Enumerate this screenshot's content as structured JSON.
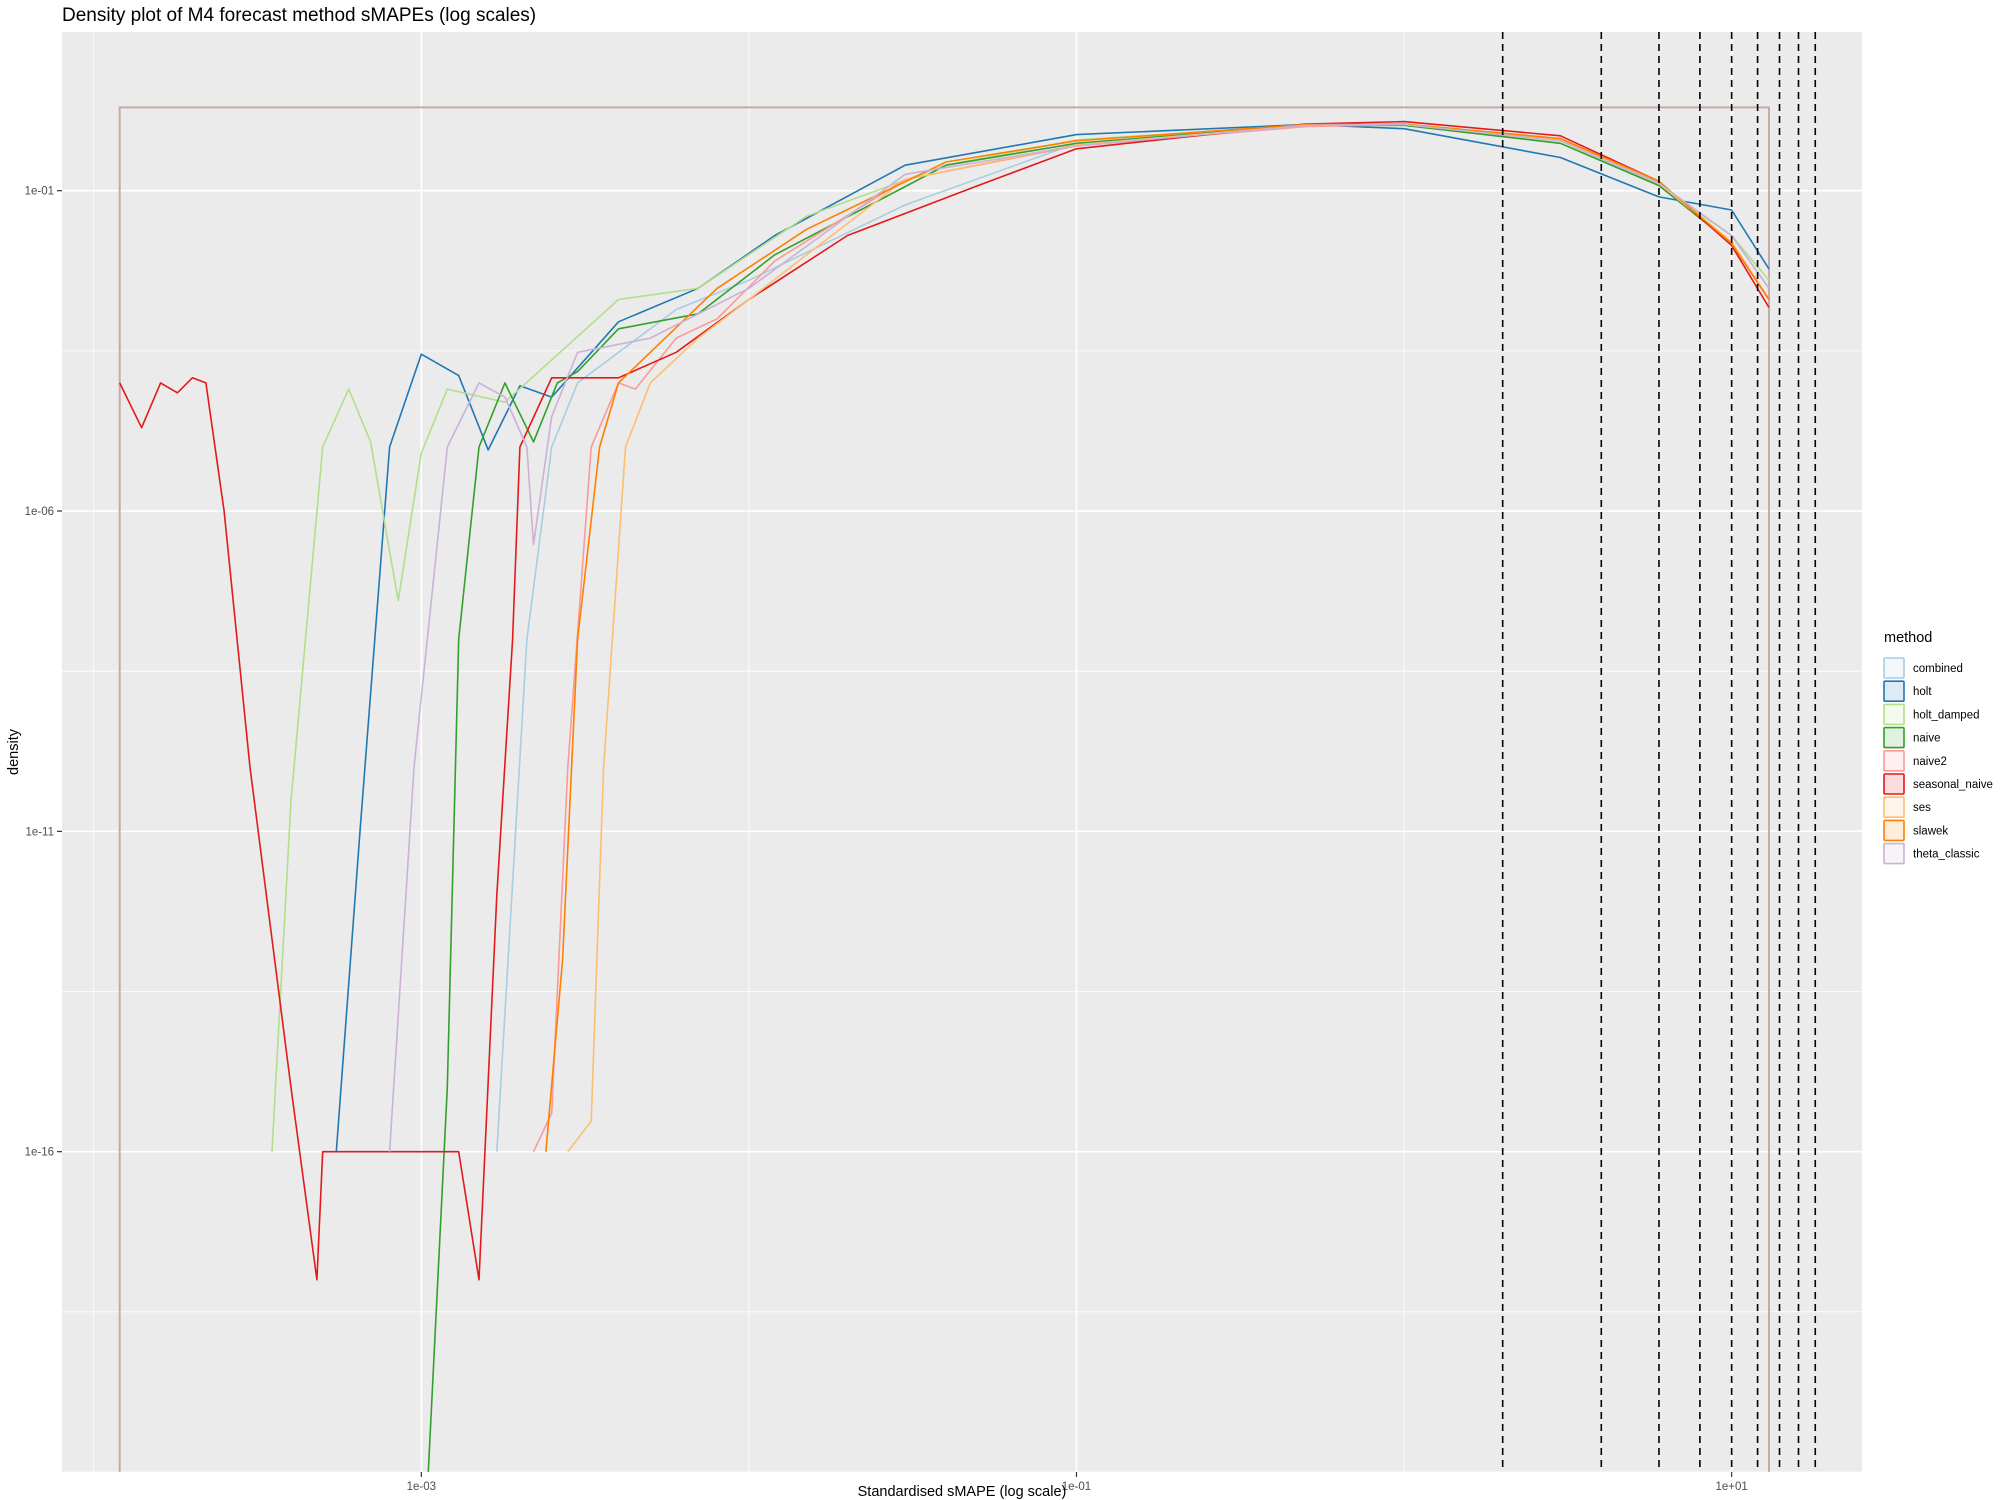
{
  "chart_data": {
    "type": "line",
    "title": "Density plot of M4 forecast method sMAPEs (log scales)",
    "xlabel": "Standardised sMAPE (log scale)",
    "ylabel": "density",
    "x_scale": "log10",
    "y_scale": "log10",
    "xlim": [
      8e-05,
      25
    ],
    "ylim": [
      1e-21,
      30
    ],
    "x_ticks": [
      0.001,
      0.1,
      10
    ],
    "x_tick_labels": [
      "1e-03",
      "1e-01",
      "1e+01"
    ],
    "y_ticks": [
      1e-16,
      1e-11,
      1e-06,
      0.1
    ],
    "y_tick_labels": [
      "1e-16",
      "1e-11",
      "1e-06",
      "1e-01"
    ],
    "grid": true,
    "legend": {
      "title": "method",
      "position": "right",
      "entries": [
        "combined",
        "holt",
        "holt_damped",
        "naive",
        "naive2",
        "seasonal_naive",
        "ses",
        "slawek",
        "theta_classic"
      ]
    },
    "vlines": [
      2,
      4,
      6,
      8,
      10,
      12,
      14,
      16,
      18
    ],
    "vline_style": "dashed",
    "frame": {
      "x": [
        0.00012,
        13
      ],
      "y_top": 2,
      "color": "#c9a9a4"
    },
    "series": [
      {
        "name": "combined",
        "color": "#a6cee3",
        "points": [
          [
            0.0017,
            1e-16
          ],
          [
            0.0021,
            1e-08
          ],
          [
            0.0025,
            1e-05
          ],
          [
            0.003,
            0.0001
          ],
          [
            0.006,
            0.0014
          ],
          [
            0.01,
            0.004
          ],
          [
            0.03,
            0.06
          ],
          [
            0.1,
            0.55
          ],
          [
            0.5,
            1.1
          ],
          [
            1,
            1.05
          ],
          [
            3,
            0.6
          ],
          [
            6,
            0.12
          ],
          [
            10,
            0.02
          ],
          [
            13,
            0.003
          ]
        ]
      },
      {
        "name": "holt",
        "color": "#1f78b4",
        "points": [
          [
            0.00055,
            1e-16
          ],
          [
            0.00065,
            1e-11
          ],
          [
            0.0008,
            1e-05
          ],
          [
            0.001,
            0.00028
          ],
          [
            0.0013,
            0.00013
          ],
          [
            0.0016,
            9e-06
          ],
          [
            0.002,
            9e-05
          ],
          [
            0.0025,
            6e-05
          ],
          [
            0.004,
            0.0009
          ],
          [
            0.007,
            0.003
          ],
          [
            0.012,
            0.02
          ],
          [
            0.03,
            0.25
          ],
          [
            0.1,
            0.75
          ],
          [
            0.5,
            1.08
          ],
          [
            1,
            0.93
          ],
          [
            3,
            0.33
          ],
          [
            6,
            0.08
          ],
          [
            10,
            0.05
          ],
          [
            13,
            0.006
          ]
        ]
      },
      {
        "name": "holt_damped",
        "color": "#b2df8a",
        "points": [
          [
            0.00035,
            1e-16
          ],
          [
            0.0004,
            3e-11
          ],
          [
            0.0005,
            1e-05
          ],
          [
            0.0006,
            8e-05
          ],
          [
            0.0007,
            1.2e-05
          ],
          [
            0.00085,
            4e-08
          ],
          [
            0.001,
            8e-06
          ],
          [
            0.0012,
            8e-05
          ],
          [
            0.0018,
            5e-05
          ],
          [
            0.004,
            0.002
          ],
          [
            0.007,
            0.003
          ],
          [
            0.015,
            0.04
          ],
          [
            0.04,
            0.25
          ],
          [
            0.1,
            0.62
          ],
          [
            0.5,
            1.05
          ],
          [
            1,
            1.05
          ],
          [
            3,
            0.55
          ],
          [
            6,
            0.12
          ],
          [
            10,
            0.02
          ],
          [
            13,
            0.004
          ]
        ]
      },
      {
        "name": "naive",
        "color": "#33a02c",
        "points": [
          [
            0.00105,
            1e-21
          ],
          [
            0.0012,
            1e-15
          ],
          [
            0.0013,
            1e-08
          ],
          [
            0.0015,
            1e-05
          ],
          [
            0.0018,
            0.0001
          ],
          [
            0.0022,
            1.2e-05
          ],
          [
            0.0026,
            0.0001
          ],
          [
            0.003,
            0.00015
          ],
          [
            0.004,
            0.0007
          ],
          [
            0.007,
            0.0012
          ],
          [
            0.012,
            0.01
          ],
          [
            0.04,
            0.25
          ],
          [
            0.1,
            0.55
          ],
          [
            0.5,
            1.05
          ],
          [
            1,
            1.05
          ],
          [
            3,
            0.55
          ],
          [
            6,
            0.12
          ],
          [
            10,
            0.015
          ],
          [
            13,
            0.002
          ]
        ]
      },
      {
        "name": "naive2",
        "color": "#fb9a99",
        "points": [
          [
            0.0022,
            1e-16
          ],
          [
            0.0025,
            4e-16
          ],
          [
            0.0028,
            1e-10
          ],
          [
            0.0033,
            1e-05
          ],
          [
            0.004,
            0.0001
          ],
          [
            0.0045,
            8e-05
          ],
          [
            0.006,
            0.0005
          ],
          [
            0.008,
            0.001
          ],
          [
            0.012,
            0.008
          ],
          [
            0.03,
            0.15
          ],
          [
            0.1,
            0.5
          ],
          [
            0.5,
            1.0
          ],
          [
            1,
            1.08
          ],
          [
            3,
            0.62
          ],
          [
            6,
            0.13
          ],
          [
            10,
            0.015
          ],
          [
            13,
            0.002
          ]
        ]
      },
      {
        "name": "seasonal_naive",
        "color": "#e31a1c",
        "points": [
          [
            0.00012,
            0.0001
          ],
          [
            0.00014,
            2e-05
          ],
          [
            0.00016,
            0.0001
          ],
          [
            0.00018,
            7e-05
          ],
          [
            0.0002,
            0.00012
          ],
          [
            0.00022,
            0.0001
          ],
          [
            0.00025,
            1e-06
          ],
          [
            0.0003,
            1e-10
          ],
          [
            0.0004,
            1e-15
          ],
          [
            0.00048,
            1e-18
          ],
          [
            0.0005,
            1e-16
          ],
          [
            0.0007,
            1e-16
          ],
          [
            0.0009,
            1e-16
          ],
          [
            0.0011,
            1e-16
          ],
          [
            0.0013,
            1e-16
          ],
          [
            0.0015,
            1e-18
          ],
          [
            0.0017,
            1e-12
          ],
          [
            0.0019,
            1e-08
          ],
          [
            0.002,
            1e-05
          ],
          [
            0.0025,
            0.00012
          ],
          [
            0.004,
            0.00012
          ],
          [
            0.006,
            0.0003
          ],
          [
            0.01,
            0.002
          ],
          [
            0.02,
            0.02
          ],
          [
            0.05,
            0.12
          ],
          [
            0.1,
            0.45
          ],
          [
            0.5,
            1.1
          ],
          [
            1,
            1.2
          ],
          [
            3,
            0.72
          ],
          [
            6,
            0.14
          ],
          [
            10,
            0.014
          ],
          [
            13,
            0.0015
          ]
        ]
      },
      {
        "name": "ses",
        "color": "#fdbf6f",
        "points": [
          [
            0.0028,
            1e-16
          ],
          [
            0.0033,
            3e-16
          ],
          [
            0.0036,
            1e-10
          ],
          [
            0.0042,
            1e-05
          ],
          [
            0.005,
            0.0001
          ],
          [
            0.007,
            0.0005
          ],
          [
            0.01,
            0.002
          ],
          [
            0.015,
            0.01
          ],
          [
            0.03,
            0.15
          ],
          [
            0.1,
            0.52
          ],
          [
            0.5,
            1.05
          ],
          [
            1,
            1.1
          ],
          [
            3,
            0.62
          ],
          [
            6,
            0.13
          ],
          [
            10,
            0.016
          ],
          [
            13,
            0.002
          ]
        ]
      },
      {
        "name": "slawek",
        "color": "#ff7f00",
        "points": [
          [
            0.0024,
            1e-16
          ],
          [
            0.0027,
            1e-13
          ],
          [
            0.003,
            1e-08
          ],
          [
            0.0035,
            1e-05
          ],
          [
            0.004,
            0.0001
          ],
          [
            0.005,
            0.0003
          ],
          [
            0.008,
            0.003
          ],
          [
            0.015,
            0.025
          ],
          [
            0.04,
            0.28
          ],
          [
            0.1,
            0.6
          ],
          [
            0.5,
            1.08
          ],
          [
            1,
            1.1
          ],
          [
            3,
            0.65
          ],
          [
            6,
            0.14
          ],
          [
            10,
            0.015
          ],
          [
            13,
            0.002
          ]
        ]
      },
      {
        "name": "theta_classic",
        "color": "#cab2d6",
        "points": [
          [
            0.0008,
            1e-16
          ],
          [
            0.00095,
            1e-10
          ],
          [
            0.0012,
            1e-05
          ],
          [
            0.0015,
            0.0001
          ],
          [
            0.0018,
            6e-05
          ],
          [
            0.0021,
            1e-05
          ],
          [
            0.0022,
            3e-07
          ],
          [
            0.0025,
            3e-05
          ],
          [
            0.003,
            0.0003
          ],
          [
            0.005,
            0.0005
          ],
          [
            0.01,
            0.003
          ],
          [
            0.03,
            0.18
          ],
          [
            0.1,
            0.5
          ],
          [
            0.5,
            1.05
          ],
          [
            1,
            1.08
          ],
          [
            3,
            0.6
          ],
          [
            6,
            0.13
          ],
          [
            10,
            0.02
          ],
          [
            13,
            0.003
          ]
        ]
      }
    ]
  }
}
